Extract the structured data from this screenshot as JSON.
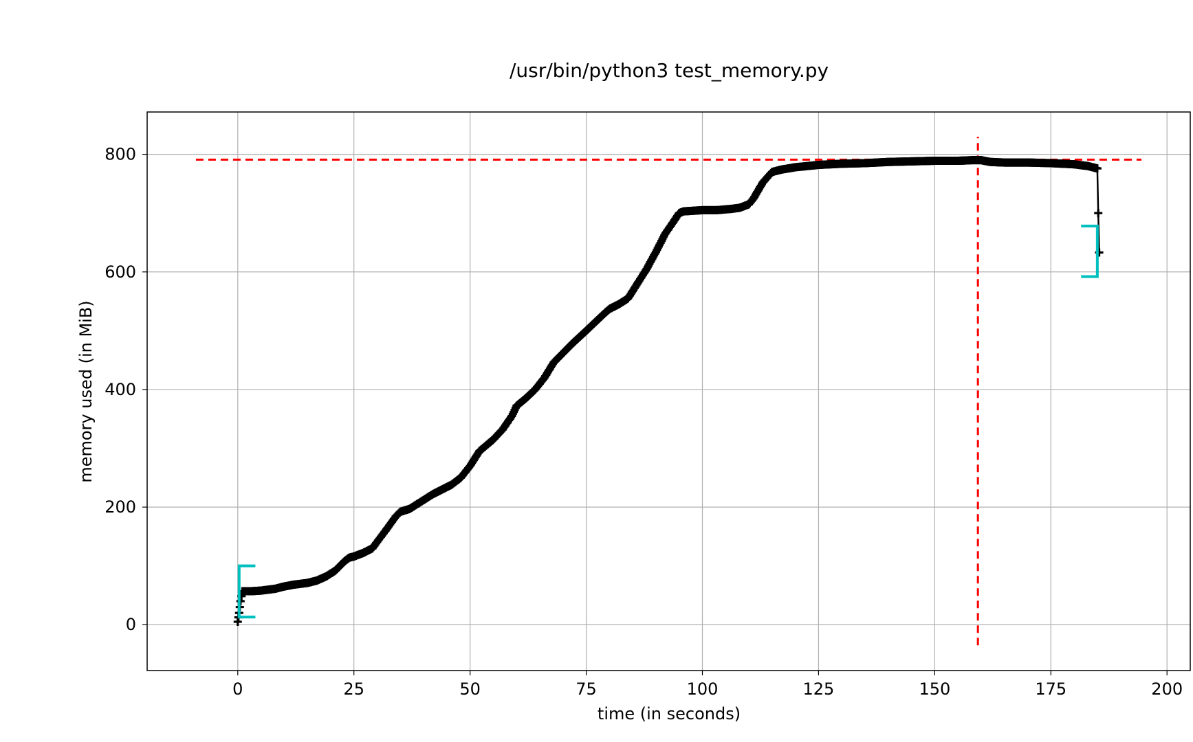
{
  "chart_data": {
    "type": "line",
    "title": "/usr/bin/python3 test_memory.py",
    "xlabel": "time (in seconds)",
    "ylabel": "memory used (in MiB)",
    "xlim": [
      -19.5,
      205
    ],
    "ylim": [
      -78,
      872
    ],
    "xticks": [
      0,
      25,
      50,
      75,
      100,
      125,
      150,
      175,
      200
    ],
    "yticks": [
      0,
      200,
      400,
      600,
      800
    ],
    "grid": true,
    "series": [
      {
        "color": "#000000",
        "marker": "+",
        "x": [
          0,
          0.3,
          0.6,
          1,
          3,
          5,
          8,
          10,
          12,
          15,
          17,
          19,
          21,
          22,
          23,
          24,
          25,
          27,
          29,
          30,
          32,
          34,
          35,
          37,
          40,
          42,
          44,
          46,
          48,
          50,
          52,
          55,
          57,
          59,
          60,
          62,
          64,
          66,
          68,
          70,
          72,
          75,
          77,
          79,
          80,
          82,
          84,
          86,
          88,
          90,
          92,
          94,
          95,
          96,
          98,
          100,
          103,
          106,
          108,
          110,
          111,
          113,
          115,
          117,
          120,
          125,
          130,
          135,
          140,
          145,
          150,
          155,
          158,
          160,
          162,
          165,
          170,
          175,
          180,
          183,
          185,
          185.2,
          185.4
        ],
        "y": [
          5,
          20,
          40,
          57,
          57,
          58,
          61,
          65,
          68,
          71,
          75,
          82,
          92,
          100,
          108,
          114,
          116,
          122,
          130,
          141,
          162,
          184,
          192,
          197,
          212,
          222,
          230,
          238,
          250,
          270,
          295,
          315,
          332,
          355,
          372,
          385,
          400,
          420,
          446,
          462,
          478,
          500,
          515,
          530,
          537,
          545,
          555,
          580,
          605,
          634,
          665,
          688,
          700,
          703,
          704,
          705,
          705,
          707,
          709,
          715,
          725,
          752,
          770,
          774,
          778,
          782,
          784,
          785,
          787,
          788,
          789,
          789,
          790,
          790,
          787,
          786,
          786,
          785,
          783,
          780,
          776,
          700,
          633
        ]
      }
    ],
    "annotations": {
      "color": "#ff0000",
      "max_memory_line_y": 791,
      "max_memory_line_x_range": [
        -9,
        194.5
      ],
      "peak_time_line_x": 159.3,
      "peak_time_line_y_range": [
        -35,
        830
      ]
    },
    "brackets": {
      "color": "#00bfbf",
      "start": {
        "x": 0.3,
        "x_tip": 3.8,
        "y_low": 13,
        "y_high": 100
      },
      "end": {
        "x": 185,
        "x_tip": 181.5,
        "y_low": 592,
        "y_high": 678
      }
    }
  }
}
